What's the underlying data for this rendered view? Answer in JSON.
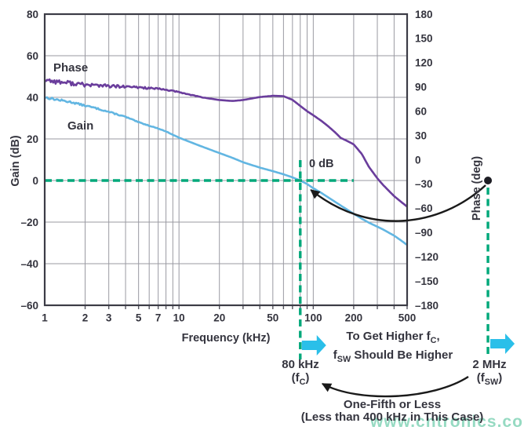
{
  "chart_data": {
    "type": "line",
    "xlabel": "Frequency (kHz)",
    "ylabel_left": "Gain (dB)",
    "ylabel_right": "Phase (deg)",
    "x_scale": "log",
    "x_range": [
      1,
      500
    ],
    "x_ticks": [
      1,
      2,
      3,
      5,
      7,
      10,
      20,
      50,
      100,
      200,
      500
    ],
    "x_minor_gridlines": [
      2,
      3,
      4,
      5,
      6,
      7,
      8,
      9,
      10,
      20,
      30,
      40,
      50,
      60,
      70,
      80,
      90,
      100,
      200,
      300,
      400,
      500
    ],
    "y_left_range": [
      -60,
      80
    ],
    "y_left_ticks": [
      80,
      60,
      40,
      20,
      0,
      -20,
      -40,
      -60
    ],
    "y_right_range": [
      -180,
      180
    ],
    "y_right_ticks": [
      180,
      150,
      120,
      90,
      60,
      30,
      0,
      -30,
      -60,
      -90,
      -120,
      -150,
      -180
    ],
    "grid": true,
    "legend_position": "inline-labels",
    "series": [
      {
        "name": "Gain",
        "axis": "left",
        "color": "#62b6e2",
        "points": [
          [
            1,
            40
          ],
          [
            1.3,
            38.6
          ],
          [
            1.6,
            37.6
          ],
          [
            2,
            36
          ],
          [
            2.5,
            34.5
          ],
          [
            3,
            33
          ],
          [
            4,
            30.6
          ],
          [
            5,
            28
          ],
          [
            6,
            26.4
          ],
          [
            7,
            25
          ],
          [
            8,
            23.6
          ],
          [
            10,
            20.6
          ],
          [
            12,
            18.6
          ],
          [
            15,
            16.2
          ],
          [
            20,
            13.2
          ],
          [
            25,
            10.9
          ],
          [
            30,
            8.8
          ],
          [
            40,
            6.2
          ],
          [
            50,
            4.5
          ],
          [
            60,
            3
          ],
          [
            70,
            1.5
          ],
          [
            80,
            0
          ],
          [
            90,
            -1.7
          ],
          [
            100,
            -3.7
          ],
          [
            115,
            -6
          ],
          [
            130,
            -8.2
          ],
          [
            145,
            -10.2
          ],
          [
            160,
            -12
          ],
          [
            180,
            -14.1
          ],
          [
            200,
            -16
          ],
          [
            230,
            -18.4
          ],
          [
            260,
            -20.3
          ],
          [
            300,
            -22.2
          ],
          [
            330,
            -23.5
          ],
          [
            400,
            -26.5
          ],
          [
            450,
            -28.8
          ],
          [
            500,
            -31
          ]
        ]
      },
      {
        "name": "Phase",
        "axis": "right",
        "color": "#6a3d9c",
        "points": [
          [
            1,
            99
          ],
          [
            1.3,
            96
          ],
          [
            1.6,
            94.5
          ],
          [
            2,
            92.5
          ],
          [
            2.5,
            92
          ],
          [
            3,
            91
          ],
          [
            4,
            90
          ],
          [
            5,
            89.5
          ],
          [
            6,
            88.5
          ],
          [
            7,
            87.5
          ],
          [
            8,
            86.5
          ],
          [
            10,
            83.5
          ],
          [
            12,
            80.5
          ],
          [
            15,
            77
          ],
          [
            20,
            73.8
          ],
          [
            25,
            72.6
          ],
          [
            30,
            73.8
          ],
          [
            35,
            75.8
          ],
          [
            40,
            77.5
          ],
          [
            50,
            79
          ],
          [
            60,
            78.6
          ],
          [
            70,
            74
          ],
          [
            80,
            66.5
          ],
          [
            90,
            60
          ],
          [
            100,
            55
          ],
          [
            115,
            48
          ],
          [
            130,
            41
          ],
          [
            145,
            34
          ],
          [
            160,
            27
          ],
          [
            180,
            23
          ],
          [
            200,
            19
          ],
          [
            230,
            7
          ],
          [
            260,
            -9
          ],
          [
            300,
            -23
          ],
          [
            330,
            -31
          ],
          [
            400,
            -45
          ],
          [
            450,
            -52
          ],
          [
            500,
            -58
          ]
        ]
      }
    ],
    "noise": {
      "Gain": {
        "below_khz": 12,
        "amp": 0.55
      },
      "Phase": {
        "below_khz": 18,
        "amp": 3.2
      }
    },
    "markers": {
      "crossover_khz": 80,
      "crossover_level_db": 0,
      "h_guide_end_khz": 200,
      "fsw_khz": 2000,
      "fsw_dot_level_db": 0
    }
  },
  "annotations": {
    "zero_db": "0 dB",
    "guidance": {
      "l1_pre": "To Get Higher f",
      "l1_sub": "C",
      "l1_post": ",",
      "l2_pre": "f",
      "l2_sub": "SW",
      "l2_post": " Should Be Higher"
    },
    "fc": {
      "value": "80 kHz",
      "pre": "(f",
      "sub": "C",
      "post": ")"
    },
    "fsw": {
      "value": "2 MHz",
      "pre": "(f",
      "sub": "SW",
      "post": ")"
    },
    "one_fifth": {
      "line1": "One-Fifth or Less",
      "line2": "(Less than 400 kHz in This Case)"
    },
    "watermark": "www.cntronics.com"
  },
  "colors": {
    "gain": "#62b6e2",
    "phase": "#6a3d9c",
    "dashed_green": "#00a87a",
    "cyan_arrow": "#2abfe9",
    "grid": "#9a9aa2",
    "frame": "#3c3c46",
    "text": "#34343e",
    "annotation_black": "#1a1a1a"
  }
}
